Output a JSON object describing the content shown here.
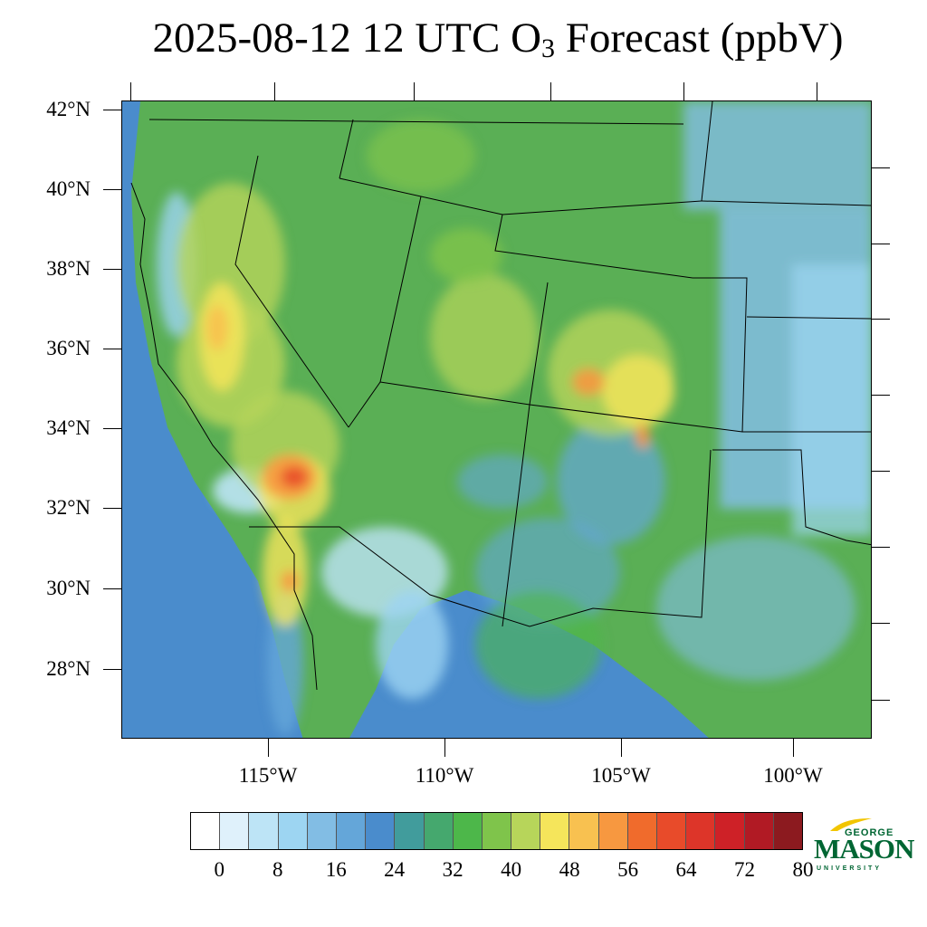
{
  "title": {
    "main": "2025-08-12 12 UTC O",
    "subscript": "3",
    "suffix": " Forecast (ppbV)"
  },
  "map": {
    "region": "Southwestern United States and northern Mexico",
    "lat_labels": [
      "42°N",
      "40°N",
      "38°N",
      "36°N",
      "34°N",
      "32°N",
      "30°N",
      "28°N"
    ],
    "lon_labels": [
      "115°W",
      "110°W",
      "105°W",
      "100°W"
    ],
    "cities_or_features": []
  },
  "colorbar": {
    "labels": [
      "0",
      "8",
      "16",
      "24",
      "32",
      "40",
      "48",
      "56",
      "64",
      "72",
      "80"
    ],
    "colors": [
      "#ffffff",
      "#dff1fb",
      "#bde4f6",
      "#9dd5f2",
      "#82bde4",
      "#64a6d9",
      "#4a8ccc",
      "#419c9c",
      "#45a86e",
      "#4db74a",
      "#7fc44b",
      "#b7d55a",
      "#f5e55b",
      "#f8c150",
      "#f79840",
      "#f06b2c",
      "#e84b2a",
      "#dd3529",
      "#ce2127",
      "#b11a24",
      "#8c1a1f"
    ]
  },
  "logo": {
    "top": "GEORGE",
    "main": "MASON",
    "bottom": "UNIVERSITY"
  }
}
